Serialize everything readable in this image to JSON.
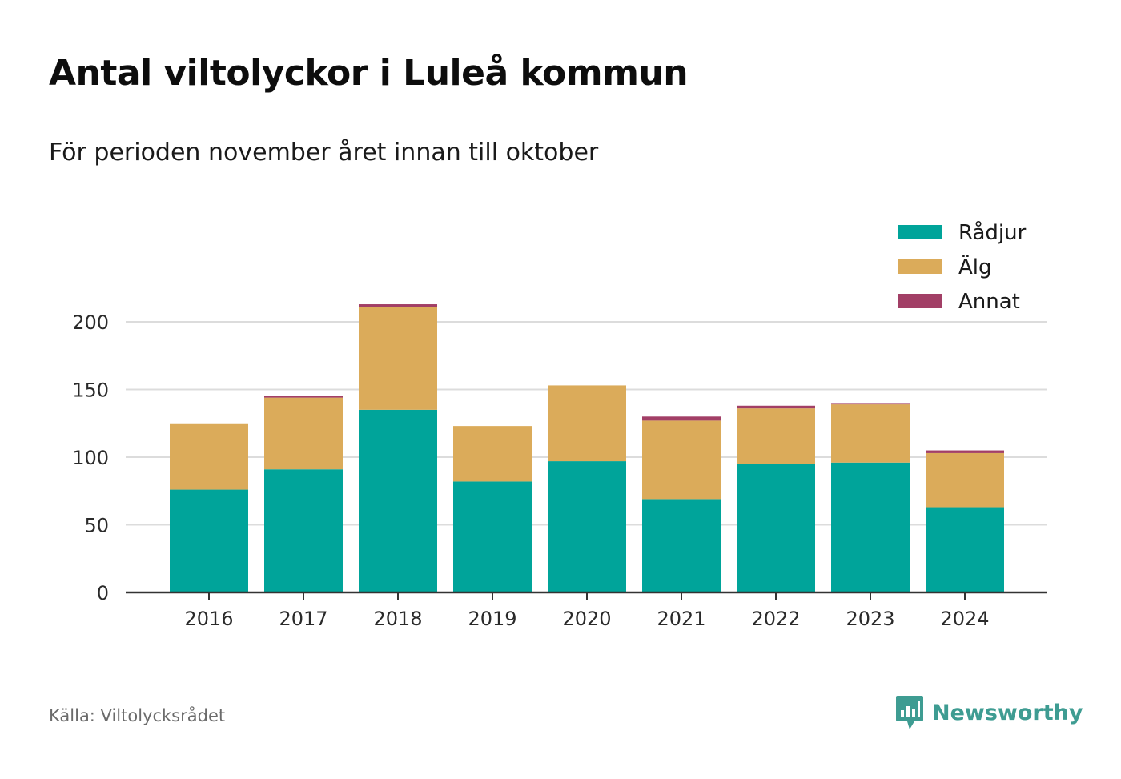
{
  "title": "Antal viltolyckor i Luleå kommun",
  "subtitle": "För perioden november året innan till oktober",
  "source": "Källa: Viltolycksrådet",
  "brand": {
    "name": "Newsworthy",
    "icon": "newsworthy-logo-icon",
    "color": "#3e9c92"
  },
  "chart_data": {
    "type": "bar",
    "stacked": true,
    "categories": [
      "2016",
      "2017",
      "2018",
      "2019",
      "2020",
      "2021",
      "2022",
      "2023",
      "2024"
    ],
    "series": [
      {
        "name": "Rådjur",
        "color": "#00a49a",
        "values": [
          76,
          91,
          135,
          82,
          97,
          69,
          95,
          96,
          63
        ]
      },
      {
        "name": "Älg",
        "color": "#dbab5a",
        "values": [
          49,
          53,
          76,
          41,
          56,
          58,
          41,
          43,
          40
        ]
      },
      {
        "name": "Annat",
        "color": "#a23f66",
        "values": [
          0,
          1,
          2,
          0,
          0,
          3,
          2,
          1,
          2
        ]
      }
    ],
    "yticks": [
      0,
      50,
      100,
      150,
      200
    ],
    "ylim": [
      0,
      225
    ],
    "grid": true,
    "legend": "top-right",
    "xlabel": "",
    "ylabel": ""
  }
}
